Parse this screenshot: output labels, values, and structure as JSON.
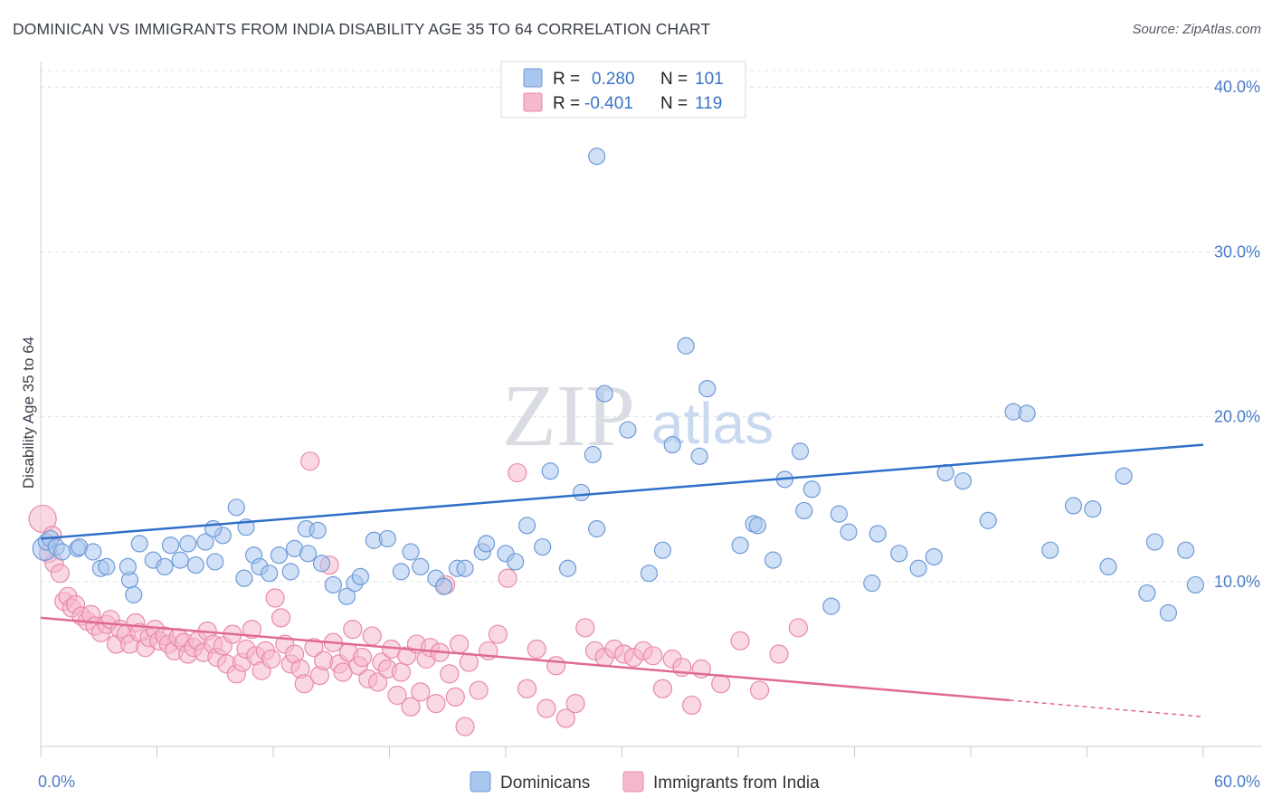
{
  "title": "DOMINICAN VS IMMIGRANTS FROM INDIA DISABILITY AGE 35 TO 64 CORRELATION CHART",
  "source": "Source: ZipAtlas.com",
  "watermark": {
    "zip": "ZIP",
    "atlas": "atlas"
  },
  "legend_top": [
    {
      "r_label": "R =",
      "r_value": "0.280",
      "n_label": "N =",
      "n_value": "101",
      "color": "#a9c6ef",
      "stroke": "#6f9ad8"
    },
    {
      "r_label": "R =",
      "r_value": "-0.401",
      "n_label": "N =",
      "n_value": "119",
      "color": "#f6b8cc",
      "stroke": "#e88aa7"
    }
  ],
  "legend_bottom": [
    {
      "label": "Dominicans",
      "color": "#a9c6ef",
      "stroke": "#6f9ad8"
    },
    {
      "label": "Immigrants from India",
      "color": "#f6b8cc",
      "stroke": "#e88aa7"
    }
  ],
  "chart_data": {
    "type": "scatter",
    "ylabel": "Disability Age 35 to 64",
    "xlim": [
      0,
      60
    ],
    "ylim": [
      0,
      41
    ],
    "x_ticks_labels": [
      "0.0%",
      "60.0%"
    ],
    "y_ticks": [
      10,
      20,
      30,
      40
    ],
    "y_tick_labels": [
      "10.0%",
      "20.0%",
      "30.0%",
      "40.0%"
    ],
    "grid": true,
    "series": [
      {
        "name": "Dominicans",
        "color": "#a9c6ef",
        "stroke": "#6f9ad8",
        "trend": {
          "x0": 0,
          "y0": 12.6,
          "x1": 60,
          "y1": 18.3,
          "color": "#2f6fc9"
        },
        "points": [
          [
            0.2,
            12.0
          ],
          [
            0.3,
            12.4
          ],
          [
            0.5,
            12.6
          ],
          [
            0.8,
            12.1
          ],
          [
            1.1,
            11.8
          ],
          [
            1.9,
            12.0
          ],
          [
            2.0,
            12.1
          ],
          [
            2.7,
            11.8
          ],
          [
            3.1,
            10.8
          ],
          [
            3.4,
            10.9
          ],
          [
            4.6,
            10.1
          ],
          [
            4.5,
            10.9
          ],
          [
            4.8,
            9.2
          ],
          [
            5.1,
            12.3
          ],
          [
            5.8,
            11.3
          ],
          [
            6.4,
            10.9
          ],
          [
            6.7,
            12.2
          ],
          [
            7.2,
            11.3
          ],
          [
            7.6,
            12.3
          ],
          [
            8.0,
            11.0
          ],
          [
            8.5,
            12.4
          ],
          [
            9.0,
            11.2
          ],
          [
            9.4,
            12.8
          ],
          [
            8.9,
            13.2
          ],
          [
            10.1,
            14.5
          ],
          [
            10.6,
            13.3
          ],
          [
            11.0,
            11.6
          ],
          [
            10.5,
            10.2
          ],
          [
            11.3,
            10.9
          ],
          [
            11.8,
            10.5
          ],
          [
            12.3,
            11.6
          ],
          [
            12.9,
            10.6
          ],
          [
            13.1,
            12.0
          ],
          [
            13.7,
            13.2
          ],
          [
            13.8,
            11.7
          ],
          [
            14.3,
            13.1
          ],
          [
            14.5,
            11.1
          ],
          [
            15.1,
            9.8
          ],
          [
            15.8,
            9.1
          ],
          [
            16.2,
            9.9
          ],
          [
            16.5,
            10.3
          ],
          [
            17.2,
            12.5
          ],
          [
            17.9,
            12.6
          ],
          [
            18.6,
            10.6
          ],
          [
            19.1,
            11.8
          ],
          [
            19.6,
            10.9
          ],
          [
            20.4,
            10.2
          ],
          [
            20.8,
            9.7
          ],
          [
            21.5,
            10.8
          ],
          [
            21.9,
            10.8
          ],
          [
            22.8,
            11.8
          ],
          [
            23.0,
            12.3
          ],
          [
            24.0,
            11.7
          ],
          [
            24.5,
            11.2
          ],
          [
            25.1,
            13.4
          ],
          [
            25.9,
            12.1
          ],
          [
            26.3,
            16.7
          ],
          [
            27.2,
            10.8
          ],
          [
            27.9,
            15.4
          ],
          [
            28.5,
            17.7
          ],
          [
            28.7,
            13.2
          ],
          [
            29.1,
            21.4
          ],
          [
            30.3,
            19.2
          ],
          [
            31.4,
            10.5
          ],
          [
            32.1,
            11.9
          ],
          [
            32.6,
            18.3
          ],
          [
            33.3,
            24.3
          ],
          [
            34.0,
            17.6
          ],
          [
            34.4,
            21.7
          ],
          [
            36.1,
            12.2
          ],
          [
            36.8,
            13.5
          ],
          [
            37.0,
            13.4
          ],
          [
            37.8,
            11.3
          ],
          [
            38.4,
            16.2
          ],
          [
            39.2,
            17.9
          ],
          [
            39.4,
            14.3
          ],
          [
            39.8,
            15.6
          ],
          [
            40.8,
            8.5
          ],
          [
            41.2,
            14.1
          ],
          [
            41.7,
            13.0
          ],
          [
            42.9,
            9.9
          ],
          [
            43.2,
            12.9
          ],
          [
            44.3,
            11.7
          ],
          [
            45.3,
            10.8
          ],
          [
            46.1,
            11.5
          ],
          [
            46.7,
            16.6
          ],
          [
            47.6,
            16.1
          ],
          [
            48.9,
            13.7
          ],
          [
            50.2,
            20.3
          ],
          [
            50.9,
            20.2
          ],
          [
            52.1,
            11.9
          ],
          [
            53.3,
            14.6
          ],
          [
            54.3,
            14.4
          ],
          [
            55.1,
            10.9
          ],
          [
            55.9,
            16.4
          ],
          [
            57.1,
            9.3
          ],
          [
            57.5,
            12.4
          ],
          [
            58.2,
            8.1
          ],
          [
            59.1,
            11.9
          ],
          [
            59.6,
            9.8
          ],
          [
            28.7,
            35.8
          ]
        ]
      },
      {
        "name": "Immigrants from India",
        "color": "#f6b8cc",
        "stroke": "#e88aa7",
        "trend": {
          "x0": 0,
          "y0": 7.8,
          "x1": 50,
          "y1": 2.8,
          "dash_to_x": 60,
          "dash_to_y": 1.8,
          "color": "#e06a93"
        },
        "points": [
          [
            0.1,
            13.8
          ],
          [
            0.4,
            11.7
          ],
          [
            0.6,
            12.8
          ],
          [
            0.7,
            11.1
          ],
          [
            1.0,
            10.5
          ],
          [
            1.2,
            8.8
          ],
          [
            1.4,
            9.1
          ],
          [
            1.6,
            8.4
          ],
          [
            1.8,
            8.6
          ],
          [
            2.1,
            7.9
          ],
          [
            2.4,
            7.6
          ],
          [
            2.6,
            8.0
          ],
          [
            2.8,
            7.3
          ],
          [
            3.1,
            6.9
          ],
          [
            3.4,
            7.4
          ],
          [
            3.6,
            7.7
          ],
          [
            3.9,
            6.2
          ],
          [
            4.1,
            7.1
          ],
          [
            4.4,
            6.8
          ],
          [
            4.6,
            6.2
          ],
          [
            4.9,
            7.5
          ],
          [
            5.1,
            6.9
          ],
          [
            5.4,
            6.0
          ],
          [
            5.6,
            6.6
          ],
          [
            5.9,
            7.1
          ],
          [
            6.1,
            6.4
          ],
          [
            6.4,
            6.7
          ],
          [
            6.6,
            6.2
          ],
          [
            6.9,
            5.8
          ],
          [
            7.1,
            6.6
          ],
          [
            7.4,
            6.3
          ],
          [
            7.6,
            5.6
          ],
          [
            7.9,
            6.0
          ],
          [
            8.1,
            6.4
          ],
          [
            8.4,
            5.7
          ],
          [
            8.6,
            7.0
          ],
          [
            8.9,
            6.2
          ],
          [
            9.1,
            5.4
          ],
          [
            9.4,
            6.1
          ],
          [
            9.6,
            5.0
          ],
          [
            9.9,
            6.8
          ],
          [
            10.1,
            4.4
          ],
          [
            10.4,
            5.1
          ],
          [
            10.6,
            5.9
          ],
          [
            10.9,
            7.1
          ],
          [
            11.1,
            5.5
          ],
          [
            11.4,
            4.6
          ],
          [
            11.6,
            5.8
          ],
          [
            11.9,
            5.3
          ],
          [
            12.1,
            9.0
          ],
          [
            12.4,
            7.8
          ],
          [
            12.6,
            6.2
          ],
          [
            12.9,
            5.0
          ],
          [
            13.1,
            5.6
          ],
          [
            13.4,
            4.7
          ],
          [
            13.6,
            3.8
          ],
          [
            13.9,
            17.3
          ],
          [
            14.1,
            6.0
          ],
          [
            14.4,
            4.3
          ],
          [
            14.6,
            5.2
          ],
          [
            14.9,
            11.0
          ],
          [
            15.1,
            6.3
          ],
          [
            15.4,
            5.0
          ],
          [
            15.6,
            4.5
          ],
          [
            15.9,
            5.7
          ],
          [
            16.1,
            7.1
          ],
          [
            16.4,
            4.9
          ],
          [
            16.6,
            5.4
          ],
          [
            16.9,
            4.1
          ],
          [
            17.1,
            6.7
          ],
          [
            17.4,
            3.9
          ],
          [
            17.6,
            5.1
          ],
          [
            17.9,
            4.7
          ],
          [
            18.1,
            5.9
          ],
          [
            18.4,
            3.1
          ],
          [
            18.6,
            4.5
          ],
          [
            18.9,
            5.5
          ],
          [
            19.1,
            2.4
          ],
          [
            19.4,
            6.2
          ],
          [
            19.6,
            3.3
          ],
          [
            19.9,
            5.3
          ],
          [
            20.1,
            6.0
          ],
          [
            20.4,
            2.6
          ],
          [
            20.6,
            5.7
          ],
          [
            20.9,
            9.8
          ],
          [
            21.1,
            4.4
          ],
          [
            21.4,
            3.0
          ],
          [
            21.6,
            6.2
          ],
          [
            21.9,
            1.2
          ],
          [
            22.1,
            5.1
          ],
          [
            22.6,
            3.4
          ],
          [
            23.1,
            5.8
          ],
          [
            23.6,
            6.8
          ],
          [
            24.1,
            10.2
          ],
          [
            24.6,
            16.6
          ],
          [
            25.1,
            3.5
          ],
          [
            25.6,
            5.9
          ],
          [
            26.1,
            2.3
          ],
          [
            26.6,
            4.9
          ],
          [
            27.1,
            1.7
          ],
          [
            27.6,
            2.6
          ],
          [
            28.1,
            7.2
          ],
          [
            28.6,
            5.8
          ],
          [
            29.1,
            5.4
          ],
          [
            29.6,
            5.9
          ],
          [
            30.1,
            5.6
          ],
          [
            30.6,
            5.4
          ],
          [
            31.1,
            5.8
          ],
          [
            31.6,
            5.5
          ],
          [
            32.1,
            3.5
          ],
          [
            32.6,
            5.3
          ],
          [
            33.1,
            4.8
          ],
          [
            33.6,
            2.5
          ],
          [
            34.1,
            4.7
          ],
          [
            35.1,
            3.8
          ],
          [
            36.1,
            6.4
          ],
          [
            37.1,
            3.4
          ],
          [
            38.1,
            5.6
          ],
          [
            39.1,
            7.2
          ]
        ]
      }
    ]
  }
}
